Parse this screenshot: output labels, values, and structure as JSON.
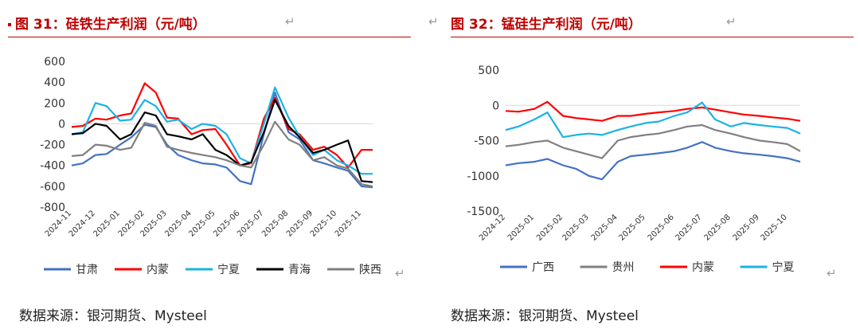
{
  "left": {
    "title": "图 31：硅铁生产利润（元/吨）",
    "source": "数据来源：银河期货、Mysteel",
    "return_mark": "↵"
  },
  "right": {
    "title": "图 32：锰硅生产利润（元/吨）",
    "source": "数据来源：银河期货、Mysteel",
    "return_mark": "↵"
  },
  "chart_data": [
    {
      "type": "line",
      "title": "图 31：硅铁生产利润（元/吨）",
      "x": [
        "2024-11-01",
        "2024-11-15",
        "2024-12-01",
        "2024-12-15",
        "2025-01-01",
        "2025-01-15",
        "2025-02-01",
        "2025-02-15",
        "2025-03-01",
        "2025-03-15",
        "2025-04-01",
        "2025-04-15",
        "2025-05-01",
        "2025-05-15",
        "2025-06-01",
        "2025-06-15",
        "2025-07-01",
        "2025-07-15",
        "2025-08-01",
        "2025-08-15",
        "2025-09-01",
        "2025-09-15",
        "2025-10-01",
        "2025-10-15",
        "2025-11-01",
        "2025-11-15"
      ],
      "x_ticks": [
        "2024-11",
        "2024-12",
        "2025-01",
        "2025-02",
        "2025-03",
        "2025-04",
        "2025-05",
        "2025-06",
        "2025-07",
        "2025-08",
        "2025-09",
        "2025-10",
        "2025-11"
      ],
      "ylim": [
        -800,
        600
      ],
      "y_ticks": [
        600,
        400,
        200,
        0,
        -200,
        -400,
        -600,
        -800
      ],
      "legend_position": "bottom",
      "series": [
        {
          "name": "甘肃",
          "color": "#4472c4",
          "values": [
            -400,
            -380,
            -300,
            -290,
            -200,
            -130,
            -10,
            -30,
            -200,
            -300,
            -350,
            -380,
            -390,
            -420,
            -550,
            -580,
            -100,
            300,
            -80,
            -150,
            -350,
            -380,
            -420,
            -450,
            -600,
            -610
          ]
        },
        {
          "name": "内蒙",
          "color": "#ff0000",
          "values": [
            -30,
            -20,
            50,
            40,
            80,
            100,
            390,
            300,
            60,
            50,
            -100,
            -60,
            -50,
            -200,
            -400,
            -380,
            50,
            250,
            -50,
            -100,
            -250,
            -220,
            -300,
            -420,
            -250,
            -250
          ]
        },
        {
          "name": "宁夏",
          "color": "#1cb2e5",
          "values": [
            -100,
            -80,
            200,
            170,
            30,
            40,
            230,
            170,
            20,
            40,
            -50,
            0,
            -20,
            -100,
            -330,
            -380,
            0,
            350,
            60,
            -120,
            -300,
            -250,
            -350,
            -400,
            -480,
            -480
          ]
        },
        {
          "name": "青海",
          "color": "#000000",
          "values": [
            -100,
            -90,
            0,
            -20,
            -150,
            -100,
            110,
            80,
            -100,
            -120,
            -150,
            -100,
            -250,
            -300,
            -400,
            -370,
            -80,
            230,
            -20,
            -130,
            -280,
            -250,
            -200,
            -160,
            -550,
            -560
          ]
        },
        {
          "name": "陕西",
          "color": "#808080",
          "values": [
            -310,
            -300,
            -200,
            -210,
            -250,
            -230,
            10,
            -20,
            -220,
            -250,
            -280,
            -300,
            -320,
            -350,
            -400,
            -420,
            -200,
            20,
            -150,
            -200,
            -350,
            -320,
            -400,
            -430,
            -580,
            -600
          ]
        }
      ]
    },
    {
      "type": "line",
      "title": "图 32：锰硅生产利润（元/吨）",
      "x": [
        "2024-12-01",
        "2024-12-15",
        "2025-01-01",
        "2025-01-15",
        "2025-02-01",
        "2025-02-15",
        "2025-03-01",
        "2025-03-15",
        "2025-04-01",
        "2025-04-15",
        "2025-05-01",
        "2025-05-15",
        "2025-06-01",
        "2025-06-15",
        "2025-07-01",
        "2025-07-15",
        "2025-08-01",
        "2025-08-15",
        "2025-09-01",
        "2025-09-15",
        "2025-10-01",
        "2025-10-15"
      ],
      "x_ticks": [
        "2024-12",
        "2025-01",
        "2025-02",
        "2025-03",
        "2025-04",
        "2025-05",
        "2025-06",
        "2025-07",
        "2025-08",
        "2025-09",
        "2025-10"
      ],
      "ylim": [
        -1500,
        500
      ],
      "y_ticks": [
        500,
        0,
        -500,
        -1000,
        -1500
      ],
      "legend_position": "bottom",
      "series": [
        {
          "name": "广西",
          "color": "#4472c4",
          "values": [
            -850,
            -820,
            -800,
            -760,
            -850,
            -900,
            -1000,
            -1050,
            -800,
            -720,
            -700,
            -680,
            -650,
            -600,
            -520,
            -600,
            -650,
            -680,
            -700,
            -720,
            -750,
            -800
          ]
        },
        {
          "name": "贵州",
          "color": "#808080",
          "values": [
            -580,
            -560,
            -520,
            -500,
            -600,
            -650,
            -700,
            -750,
            -500,
            -450,
            -420,
            -400,
            -350,
            -300,
            -280,
            -350,
            -400,
            -450,
            -500,
            -520,
            -550,
            -650
          ]
        },
        {
          "name": "内蒙",
          "color": "#ff0000",
          "values": [
            -80,
            -90,
            -50,
            50,
            -150,
            -180,
            -200,
            -220,
            -150,
            -150,
            -120,
            -100,
            -80,
            -50,
            -30,
            -60,
            -100,
            -130,
            -150,
            -170,
            -190,
            -220
          ]
        },
        {
          "name": "宁夏",
          "color": "#1cb2e5",
          "values": [
            -350,
            -300,
            -200,
            -100,
            -450,
            -420,
            -400,
            -420,
            -350,
            -300,
            -250,
            -230,
            -150,
            -100,
            40,
            -200,
            -300,
            -250,
            -280,
            -300,
            -320,
            -400
          ]
        }
      ]
    }
  ]
}
